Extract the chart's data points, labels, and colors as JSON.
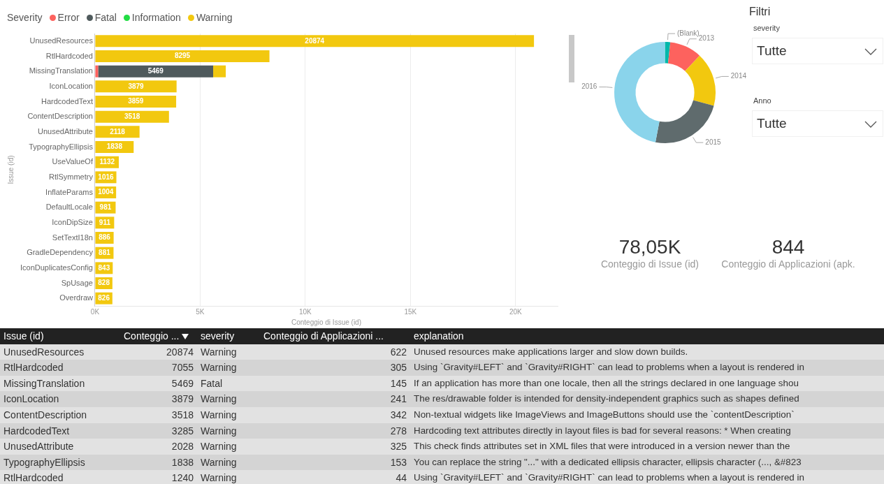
{
  "chart_data": [
    {
      "type": "bar",
      "orientation": "horizontal",
      "stacked": true,
      "xlabel": "Conteggio di Issue (id)",
      "ylabel": "Issue (id)",
      "legend_title": "Severity",
      "legend": "top left",
      "grid": "x",
      "categories": [
        "UnusedResources",
        "RtlHardcoded",
        "MissingTranslation",
        "IconLocation",
        "HardcodedText",
        "ContentDescription",
        "UnusedAttribute",
        "TypographyEllipsis",
        "UseValueOf",
        "RtlSymmetry",
        "InflateParams",
        "DefaultLocale",
        "IconDipSize",
        "SetTextI18n",
        "GradleDependency",
        "IconDuplicatesConfig",
        "SpUsage",
        "Overdraw"
      ],
      "xlim": [
        0,
        22000
      ],
      "xticks": [
        {
          "value": 0,
          "label": "0K"
        },
        {
          "value": 5000,
          "label": "5K"
        },
        {
          "value": 10000,
          "label": "10K"
        },
        {
          "value": 15000,
          "label": "15K"
        },
        {
          "value": 20000,
          "label": "20K"
        }
      ],
      "series": [
        {
          "name": "Error",
          "color": "#fd625e",
          "values": [
            null,
            null,
            150,
            null,
            null,
            null,
            null,
            null,
            null,
            null,
            null,
            null,
            null,
            null,
            null,
            null,
            null,
            null
          ],
          "value_labels": [
            null,
            null,
            null,
            null,
            null,
            null,
            null,
            null,
            null,
            null,
            null,
            null,
            null,
            null,
            null,
            null,
            null,
            null
          ]
        },
        {
          "name": "Fatal",
          "color": "#4f5a5c",
          "values": [
            null,
            null,
            5469,
            null,
            null,
            null,
            null,
            null,
            null,
            null,
            null,
            null,
            null,
            null,
            null,
            null,
            null,
            null
          ],
          "value_labels": [
            null,
            null,
            "5469",
            null,
            null,
            null,
            null,
            null,
            null,
            null,
            null,
            null,
            null,
            null,
            null,
            null,
            null,
            null
          ]
        },
        {
          "name": "Information",
          "color": "#22dd44",
          "values": [
            null,
            null,
            null,
            null,
            null,
            null,
            null,
            null,
            null,
            null,
            null,
            null,
            null,
            null,
            null,
            null,
            null,
            null
          ]
        },
        {
          "name": "Warning",
          "color": "#f2c80f",
          "values": [
            20874,
            8295,
            600,
            3879,
            3859,
            3518,
            2118,
            1838,
            1132,
            1016,
            1004,
            981,
            911,
            886,
            881,
            843,
            828,
            826
          ],
          "value_labels": [
            "20874",
            "8295",
            null,
            "3879",
            "3859",
            "3518",
            "2118",
            "1838",
            "1132",
            "1016",
            "1004",
            "981",
            "911",
            "886",
            "881",
            "843",
            "828",
            "826"
          ]
        }
      ]
    },
    {
      "type": "donut",
      "categories": [
        "(Blank)",
        "2013",
        "2014",
        "2015",
        "2016"
      ],
      "values": [
        1.7,
        10.3,
        17.2,
        23.8,
        47.0
      ],
      "colors": [
        "#01b8aa",
        "#fd625e",
        "#f2c80f",
        "#5f6b6d",
        "#8ad4eb"
      ]
    },
    {
      "type": "other",
      "title": "Filtri",
      "annotations": [
        "severity",
        "Tutte",
        "Anno",
        "Tutte"
      ]
    },
    {
      "type": "other",
      "annotations": [
        "78,05K",
        "Conteggio di Issue (id)",
        "844",
        "Conteggio di Applicazioni (apk."
      ]
    },
    {
      "type": "other",
      "annotations": [
        "Issue (id)",
        "Conteggio ...",
        "severity",
        "Conteggio di Applicazioni ...",
        "explanation",
        "UnusedResources",
        "20874",
        "Warning",
        "622",
        "Unused resources make applications larger and slow down builds.",
        "RtlHardcoded",
        "7055",
        "Warning",
        "305",
        "Using `Gravity#LEFT` and `Gravity#RIGHT` can lead to problems when a layout is rendered in",
        "MissingTranslation",
        "5469",
        "Fatal",
        "145",
        "If an application has more than one locale, then all the strings declared in one language shou",
        "IconLocation",
        "3879",
        "Warning",
        "241",
        "The res/drawable folder is intended for density-independent graphics such as shapes defined",
        "ContentDescription",
        "3518",
        "Warning",
        "342",
        "Non-textual widgets like ImageViews and ImageButtons should use the `contentDescription`",
        "HardcodedText",
        "3285",
        "Warning",
        "278",
        "Hardcoding text attributes directly in layout files is bad for several reasons: * When creating",
        "UnusedAttribute",
        "2028",
        "Warning",
        "325",
        "This check finds attributes set in XML files that were introduced in a version newer than the",
        "TypographyEllipsis",
        "1838",
        "Warning",
        "153",
        "You can replace the string \"...\" with a dedicated ellipsis character, ellipsis character (..., &#823",
        "RtlHardcoded",
        "1240",
        "Warning",
        "44",
        "Using `Gravity#LEFT` and `Gravity#RIGHT` can lead to problems when a layout is rendered in"
      ]
    }
  ]
}
